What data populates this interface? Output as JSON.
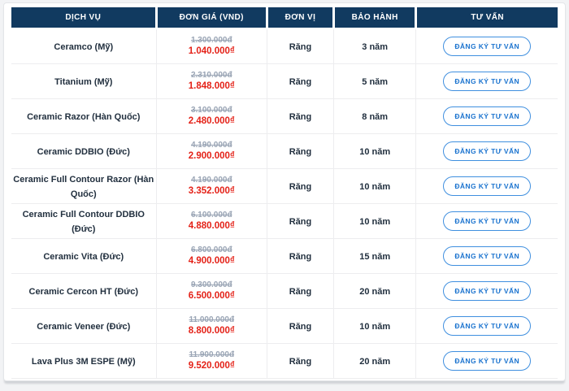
{
  "table": {
    "columns": [
      "DỊCH VỤ",
      "ĐƠN GIÁ (VND)",
      "ĐƠN VỊ",
      "BẢO HÀNH",
      "TƯ VẤN"
    ],
    "button_label": "ĐĂNG KÝ TƯ VẤN",
    "rows": [
      {
        "service": "Ceramco (Mỹ)",
        "old_price": "1.300.000đ",
        "price": "1.040.000₫",
        "unit": "Răng",
        "warranty": "3 năm"
      },
      {
        "service": "Titanium (Mỹ)",
        "old_price": "2.310.000đ",
        "price": "1.848.000₫",
        "unit": "Răng",
        "warranty": "5 năm"
      },
      {
        "service": "Ceramic Razor (Hàn Quốc)",
        "old_price": "3.100.000đ",
        "price": "2.480.000₫",
        "unit": "Răng",
        "warranty": "8 năm"
      },
      {
        "service": "Ceramic DDBIO (Đức)",
        "old_price": "4.190.000đ",
        "price": "2.900.000₫",
        "unit": "Răng",
        "warranty": "10 năm"
      },
      {
        "service": "Ceramic Full Contour Razor (Hàn Quốc)",
        "old_price": "4.190.000đ",
        "price": "3.352.000₫",
        "unit": "Răng",
        "warranty": "10 năm"
      },
      {
        "service": "Ceramic Full Contour DDBIO (Đức)",
        "old_price": "6.100.000đ",
        "price": "4.880.000₫",
        "unit": "Răng",
        "warranty": "10 năm"
      },
      {
        "service": "Ceramic Vita (Đức)",
        "old_price": "6.800.000đ",
        "price": "4.900.000₫",
        "unit": "Răng",
        "warranty": "15 năm"
      },
      {
        "service": "Ceramic Cercon HT (Đức)",
        "old_price": "9.300.000đ",
        "price": "6.500.000₫",
        "unit": "Răng",
        "warranty": "20 năm"
      },
      {
        "service": "Ceramic Veneer (Đức)",
        "old_price": "11.000.000đ",
        "price": "8.800.000₫",
        "unit": "Răng",
        "warranty": "10 năm"
      },
      {
        "service": "Lava Plus 3M ESPE (Mỹ)",
        "old_price": "11.900.000đ",
        "price": "9.520.000₫",
        "unit": "Răng",
        "warranty": "20 năm"
      }
    ],
    "colors": {
      "header_bg": "#113a60",
      "old_price": "#9aa5b5",
      "sale_price": "#e42117",
      "button_border": "#3f8fdf",
      "button_text": "#1a73cf"
    }
  }
}
